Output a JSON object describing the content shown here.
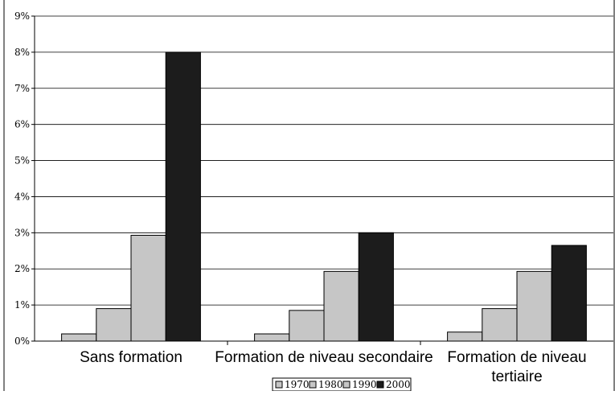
{
  "chart_data": {
    "type": "bar",
    "title": "",
    "xlabel": "",
    "ylabel": "",
    "ylim": [
      0,
      9
    ],
    "y_ticks": [
      "0%",
      "1%",
      "2%",
      "3%",
      "4%",
      "5%",
      "6%",
      "7%",
      "8%",
      "9%"
    ],
    "grid": true,
    "legend_position": "bottom",
    "categories": [
      [
        "Sans formation"
      ],
      [
        "Formation de niveau secondaire"
      ],
      [
        "Formation de niveau",
        "tertiaire"
      ]
    ],
    "series": [
      {
        "name": "1970",
        "color": "#c6c6c6",
        "values": [
          0.2,
          0.2,
          0.25
        ]
      },
      {
        "name": "1980",
        "color": "#c6c6c6",
        "values": [
          0.9,
          0.85,
          0.9
        ]
      },
      {
        "name": "1990",
        "color": "#c6c6c6",
        "values": [
          2.93,
          1.93,
          1.93
        ]
      },
      {
        "name": "2000",
        "color": "#1c1c1c",
        "values": [
          8.0,
          3.0,
          2.65
        ]
      }
    ]
  }
}
